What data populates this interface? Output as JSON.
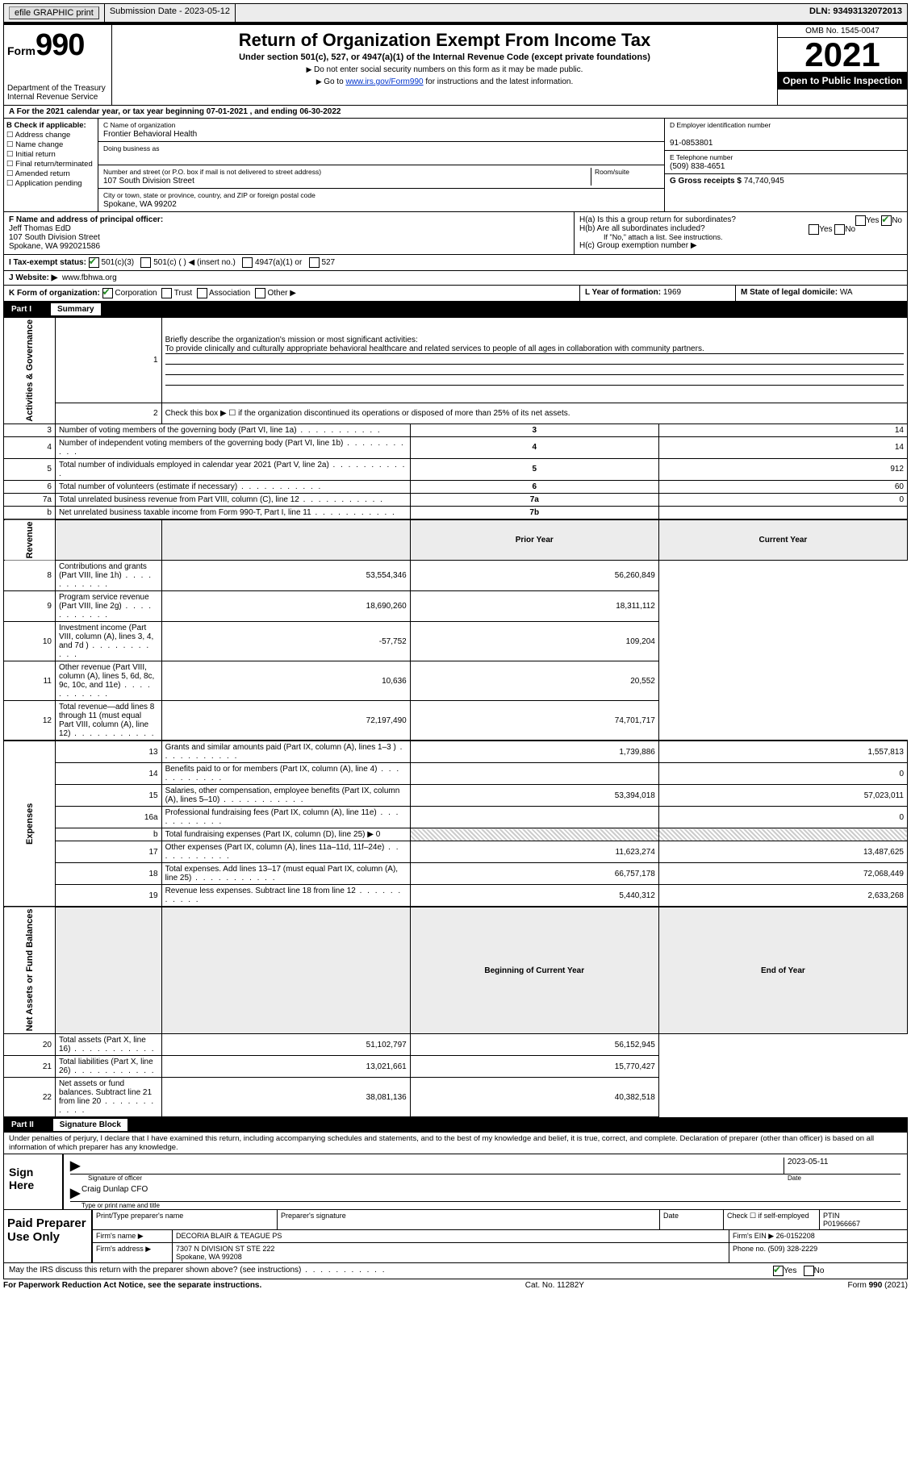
{
  "topbar": {
    "efile_btn": "efile GRAPHIC print",
    "submission_label": "Submission Date - 2023-05-12",
    "dln_label": "DLN: 93493132072013"
  },
  "header": {
    "form_word": "Form",
    "form_num": "990",
    "dept": "Department of the Treasury Internal Revenue Service",
    "title": "Return of Organization Exempt From Income Tax",
    "sub1": "Under section 501(c), 527, or 4947(a)(1) of the Internal Revenue Code (except private foundations)",
    "sub2": "Do not enter social security numbers on this form as it may be made public.",
    "sub3_pre": "Go to ",
    "sub3_link": "www.irs.gov/Form990",
    "sub3_post": " for instructions and the latest information.",
    "omb": "OMB No. 1545-0047",
    "year": "2021",
    "inspection": "Open to Public Inspection"
  },
  "periodA": "A For the 2021 calendar year, or tax year beginning 07-01-2021  , and ending 06-30-2022",
  "b": {
    "label": "B Check if applicable:",
    "opts": [
      "Address change",
      "Name change",
      "Initial return",
      "Final return/terminated",
      "Amended return",
      "Application pending"
    ]
  },
  "c": {
    "name_lbl": "C Name of organization",
    "name": "Frontier Behavioral Health",
    "dba_lbl": "Doing business as",
    "dba": "",
    "addr_lbl": "Number and street (or P.O. box if mail is not delivered to street address)",
    "room_lbl": "Room/suite",
    "addr": "107 South Division Street",
    "city_lbl": "City or town, state or province, country, and ZIP or foreign postal code",
    "city": "Spokane, WA  99202"
  },
  "d": {
    "ein_lbl": "D Employer identification number",
    "ein": "91-0853801",
    "tel_lbl": "E Telephone number",
    "tel": "(509) 838-4651",
    "gross_lbl": "G Gross receipts $",
    "gross": "74,740,945"
  },
  "f": {
    "lbl": "F  Name and address of principal officer:",
    "name": "Jeff Thomas EdD",
    "addr1": "107 South Division Street",
    "addr2": "Spokane, WA  992021586"
  },
  "h": {
    "a": "H(a)  Is this a group return for subordinates?",
    "no_checked": true,
    "b": "H(b)  Are all subordinates included?",
    "b_note": "If \"No,\" attach a list. See instructions.",
    "c": "H(c)  Group exemption number ▶"
  },
  "i": {
    "lbl": "I  Tax-exempt status:",
    "opts": [
      "501(c)(3)",
      "501(c) (  ) ◀ (insert no.)",
      "4947(a)(1) or",
      "527"
    ]
  },
  "j": {
    "lbl": "J  Website: ▶",
    "val": "www.fbhwa.org"
  },
  "k": {
    "lbl": "K Form of organization:",
    "opts": [
      "Corporation",
      "Trust",
      "Association",
      "Other ▶"
    ]
  },
  "l": {
    "lbl": "L Year of formation:",
    "val": "1969"
  },
  "m": {
    "lbl": "M State of legal domicile:",
    "val": "WA"
  },
  "part1": {
    "bar": "Part I",
    "title": "Summary",
    "q1_lbl": "Briefly describe the organization's mission or most significant activities:",
    "q1_val": "To provide clinically and culturally appropriate behavioral healthcare and related services to people of all ages in collaboration with community partners.",
    "q2": "Check this box ▶ ☐ if the organization discontinued its operations or disposed of more than 25% of its net assets.",
    "rows_gov": [
      {
        "n": "3",
        "d": "Number of voting members of the governing body (Part VI, line 1a)",
        "box": "3",
        "v": "14"
      },
      {
        "n": "4",
        "d": "Number of independent voting members of the governing body (Part VI, line 1b)",
        "box": "4",
        "v": "14"
      },
      {
        "n": "5",
        "d": "Total number of individuals employed in calendar year 2021 (Part V, line 2a)",
        "box": "5",
        "v": "912"
      },
      {
        "n": "6",
        "d": "Total number of volunteers (estimate if necessary)",
        "box": "6",
        "v": "60"
      },
      {
        "n": "7a",
        "d": "Total unrelated business revenue from Part VIII, column (C), line 12",
        "box": "7a",
        "v": "0"
      },
      {
        "n": "b",
        "d": "Net unrelated business taxable income from Form 990-T, Part I, line 11",
        "box": "7b",
        "v": ""
      }
    ],
    "col_prior": "Prior Year",
    "col_current": "Current Year",
    "rows_rev": [
      {
        "n": "8",
        "d": "Contributions and grants (Part VIII, line 1h)",
        "p": "53,554,346",
        "c": "56,260,849"
      },
      {
        "n": "9",
        "d": "Program service revenue (Part VIII, line 2g)",
        "p": "18,690,260",
        "c": "18,311,112"
      },
      {
        "n": "10",
        "d": "Investment income (Part VIII, column (A), lines 3, 4, and 7d )",
        "p": "-57,752",
        "c": "109,204"
      },
      {
        "n": "11",
        "d": "Other revenue (Part VIII, column (A), lines 5, 6d, 8c, 9c, 10c, and 11e)",
        "p": "10,636",
        "c": "20,552"
      },
      {
        "n": "12",
        "d": "Total revenue—add lines 8 through 11 (must equal Part VIII, column (A), line 12)",
        "p": "72,197,490",
        "c": "74,701,717"
      }
    ],
    "rows_exp": [
      {
        "n": "13",
        "d": "Grants and similar amounts paid (Part IX, column (A), lines 1–3 )",
        "p": "1,739,886",
        "c": "1,557,813"
      },
      {
        "n": "14",
        "d": "Benefits paid to or for members (Part IX, column (A), line 4)",
        "p": "",
        "c": "0"
      },
      {
        "n": "15",
        "d": "Salaries, other compensation, employee benefits (Part IX, column (A), lines 5–10)",
        "p": "53,394,018",
        "c": "57,023,011"
      },
      {
        "n": "16a",
        "d": "Professional fundraising fees (Part IX, column (A), line 11e)",
        "p": "",
        "c": "0"
      },
      {
        "n": "b",
        "d": "Total fundraising expenses (Part IX, column (D), line 25) ▶ 0",
        "p": "HATCH",
        "c": "HATCH"
      },
      {
        "n": "17",
        "d": "Other expenses (Part IX, column (A), lines 11a–11d, 11f–24e)",
        "p": "11,623,274",
        "c": "13,487,625"
      },
      {
        "n": "18",
        "d": "Total expenses. Add lines 13–17 (must equal Part IX, column (A), line 25)",
        "p": "66,757,178",
        "c": "72,068,449"
      },
      {
        "n": "19",
        "d": "Revenue less expenses. Subtract line 18 from line 12",
        "p": "5,440,312",
        "c": "2,633,268"
      }
    ],
    "col_begin": "Beginning of Current Year",
    "col_end": "End of Year",
    "rows_net": [
      {
        "n": "20",
        "d": "Total assets (Part X, line 16)",
        "p": "51,102,797",
        "c": "56,152,945"
      },
      {
        "n": "21",
        "d": "Total liabilities (Part X, line 26)",
        "p": "13,021,661",
        "c": "15,770,427"
      },
      {
        "n": "22",
        "d": "Net assets or fund balances. Subtract line 21 from line 20",
        "p": "38,081,136",
        "c": "40,382,518"
      }
    ],
    "vert_gov": "Activities & Governance",
    "vert_rev": "Revenue",
    "vert_exp": "Expenses",
    "vert_net": "Net Assets or Fund Balances"
  },
  "part2": {
    "bar": "Part II",
    "title": "Signature Block",
    "penalty": "Under penalties of perjury, I declare that I have examined this return, including accompanying schedules and statements, and to the best of my knowledge and belief, it is true, correct, and complete. Declaration of preparer (other than officer) is based on all information of which preparer has any knowledge.",
    "sign_here": "Sign Here",
    "sig_officer_lbl": "Signature of officer",
    "sig_date": "2023-05-11",
    "date_lbl": "Date",
    "officer_name": "Craig Dunlap CFO",
    "officer_name_lbl": "Type or print name and title"
  },
  "paid": {
    "lbl": "Paid Preparer Use Only",
    "print_lbl": "Print/Type preparer's name",
    "sig_lbl": "Preparer's signature",
    "date_lbl": "Date",
    "check_lbl": "Check ☐ if self-employed",
    "ptin_lbl": "PTIN",
    "ptin": "P01966667",
    "firm_name_lbl": "Firm's name  ▶",
    "firm_name": "DECORIA BLAIR & TEAGUE PS",
    "firm_ein_lbl": "Firm's EIN ▶",
    "firm_ein": "26-0152208",
    "firm_addr_lbl": "Firm's address ▶",
    "firm_addr1": "7307 N DIVISION ST STE 222",
    "firm_addr2": "Spokane, WA  99208",
    "phone_lbl": "Phone no.",
    "phone": "(509) 328-2229"
  },
  "discuss": {
    "q": "May the IRS discuss this return with the preparer shown above? (see instructions)",
    "yes_checked": true
  },
  "footer": {
    "left": "For Paperwork Reduction Act Notice, see the separate instructions.",
    "center": "Cat. No. 11282Y",
    "right_pre": "Form ",
    "right_num": "990",
    "right_post": " (2021)"
  }
}
